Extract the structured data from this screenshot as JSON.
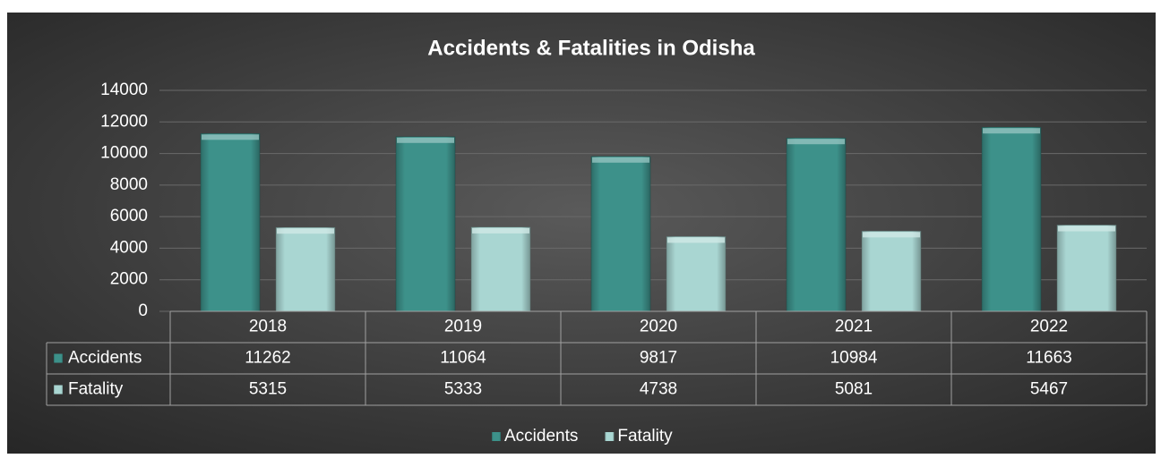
{
  "chart_data": {
    "type": "bar",
    "title": "Accidents & Fatalities in Odisha",
    "categories": [
      "2018",
      "2019",
      "2020",
      "2021",
      "2022"
    ],
    "series": [
      {
        "name": "Accidents",
        "color": "#3d918a",
        "values": [
          11262,
          11064,
          9817,
          10984,
          11663
        ]
      },
      {
        "name": "Fatality",
        "color": "#a9d6d2",
        "values": [
          5315,
          5333,
          4738,
          5081,
          5467
        ]
      }
    ],
    "ylim": [
      0,
      14000
    ],
    "yticks": [
      0,
      2000,
      4000,
      6000,
      8000,
      10000,
      12000,
      14000
    ],
    "grid": true,
    "legend": "bottom",
    "data_table": true
  }
}
